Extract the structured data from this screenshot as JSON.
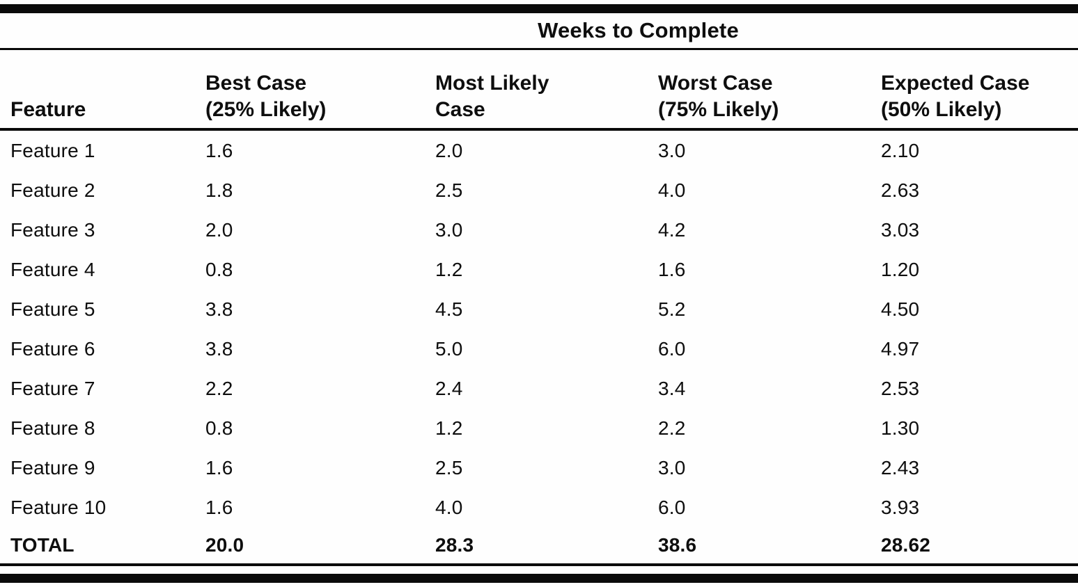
{
  "page": {
    "background": "#fefefe",
    "ink": "#0a0a0a"
  },
  "table": {
    "spanner_title": "Weeks to Complete",
    "columns": [
      {
        "label_line1": "Feature",
        "label_line2": ""
      },
      {
        "label_line1": "Best Case",
        "label_line2": "(25% Likely)"
      },
      {
        "label_line1": "Most Likely",
        "label_line2": "Case"
      },
      {
        "label_line1": "Worst Case",
        "label_line2": "(75% Likely)"
      },
      {
        "label_line1": "Expected Case",
        "label_line2": "(50% Likely)"
      }
    ],
    "rows": [
      {
        "feature": "Feature 1",
        "best": "1.6",
        "likely": "2.0",
        "worst": "3.0",
        "expected": "2.10"
      },
      {
        "feature": "Feature 2",
        "best": "1.8",
        "likely": "2.5",
        "worst": "4.0",
        "expected": "2.63"
      },
      {
        "feature": "Feature 3",
        "best": "2.0",
        "likely": "3.0",
        "worst": "4.2",
        "expected": "3.03"
      },
      {
        "feature": "Feature 4",
        "best": "0.8",
        "likely": "1.2",
        "worst": "1.6",
        "expected": "1.20"
      },
      {
        "feature": "Feature 5",
        "best": "3.8",
        "likely": "4.5",
        "worst": "5.2",
        "expected": "4.50"
      },
      {
        "feature": "Feature 6",
        "best": "3.8",
        "likely": "5.0",
        "worst": "6.0",
        "expected": "4.97"
      },
      {
        "feature": "Feature 7",
        "best": "2.2",
        "likely": "2.4",
        "worst": "3.4",
        "expected": "2.53"
      },
      {
        "feature": "Feature 8",
        "best": "0.8",
        "likely": "1.2",
        "worst": "2.2",
        "expected": "1.30"
      },
      {
        "feature": "Feature 9",
        "best": "1.6",
        "likely": "2.5",
        "worst": "3.0",
        "expected": "2.43"
      },
      {
        "feature": "Feature 10",
        "best": "1.6",
        "likely": "4.0",
        "worst": "6.0",
        "expected": "3.93"
      }
    ],
    "total_row": {
      "feature": "TOTAL",
      "best": "20.0",
      "likely": "28.3",
      "worst": "38.6",
      "expected": "28.62"
    }
  }
}
